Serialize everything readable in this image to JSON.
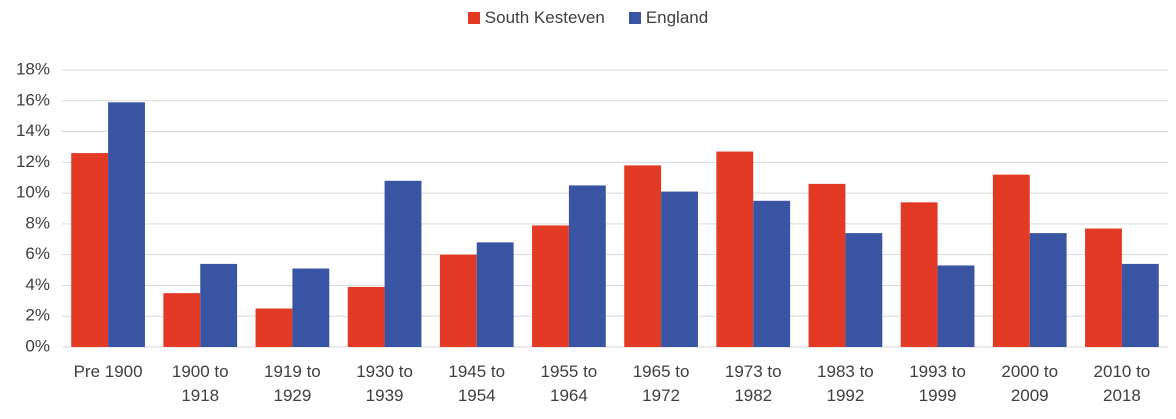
{
  "chart_data": {
    "type": "bar",
    "categories": [
      "Pre 1900",
      "1900 to 1918",
      "1919 to 1929",
      "1930 to 1939",
      "1945 to 1954",
      "1955 to 1964",
      "1965 to 1972",
      "1973 to 1982",
      "1983 to 1992",
      "1993 to 1999",
      "2000 to 2009",
      "2010 to 2018"
    ],
    "series": [
      {
        "name": "South Kesteven",
        "color": "#e33a26",
        "values": [
          12.6,
          3.5,
          2.5,
          3.9,
          6.0,
          7.9,
          11.8,
          12.7,
          10.6,
          9.4,
          11.2,
          7.7
        ]
      },
      {
        "name": "England",
        "color": "#3a54a4",
        "values": [
          15.9,
          5.4,
          5.1,
          10.8,
          6.8,
          10.5,
          10.1,
          9.5,
          7.4,
          5.3,
          7.4,
          5.4
        ]
      }
    ],
    "ylim": [
      0,
      18
    ],
    "yticks": [
      {
        "value": 0,
        "label": "0%"
      },
      {
        "value": 2,
        "label": "2%"
      },
      {
        "value": 4,
        "label": "4%"
      },
      {
        "value": 6,
        "label": "6%"
      },
      {
        "value": 8,
        "label": "8%"
      },
      {
        "value": 10,
        "label": "10%"
      },
      {
        "value": 12,
        "label": "12%"
      },
      {
        "value": 14,
        "label": "14%"
      },
      {
        "value": 16,
        "label": "16%"
      },
      {
        "value": 18,
        "label": "18%"
      }
    ],
    "grid": true,
    "legend": "top"
  }
}
